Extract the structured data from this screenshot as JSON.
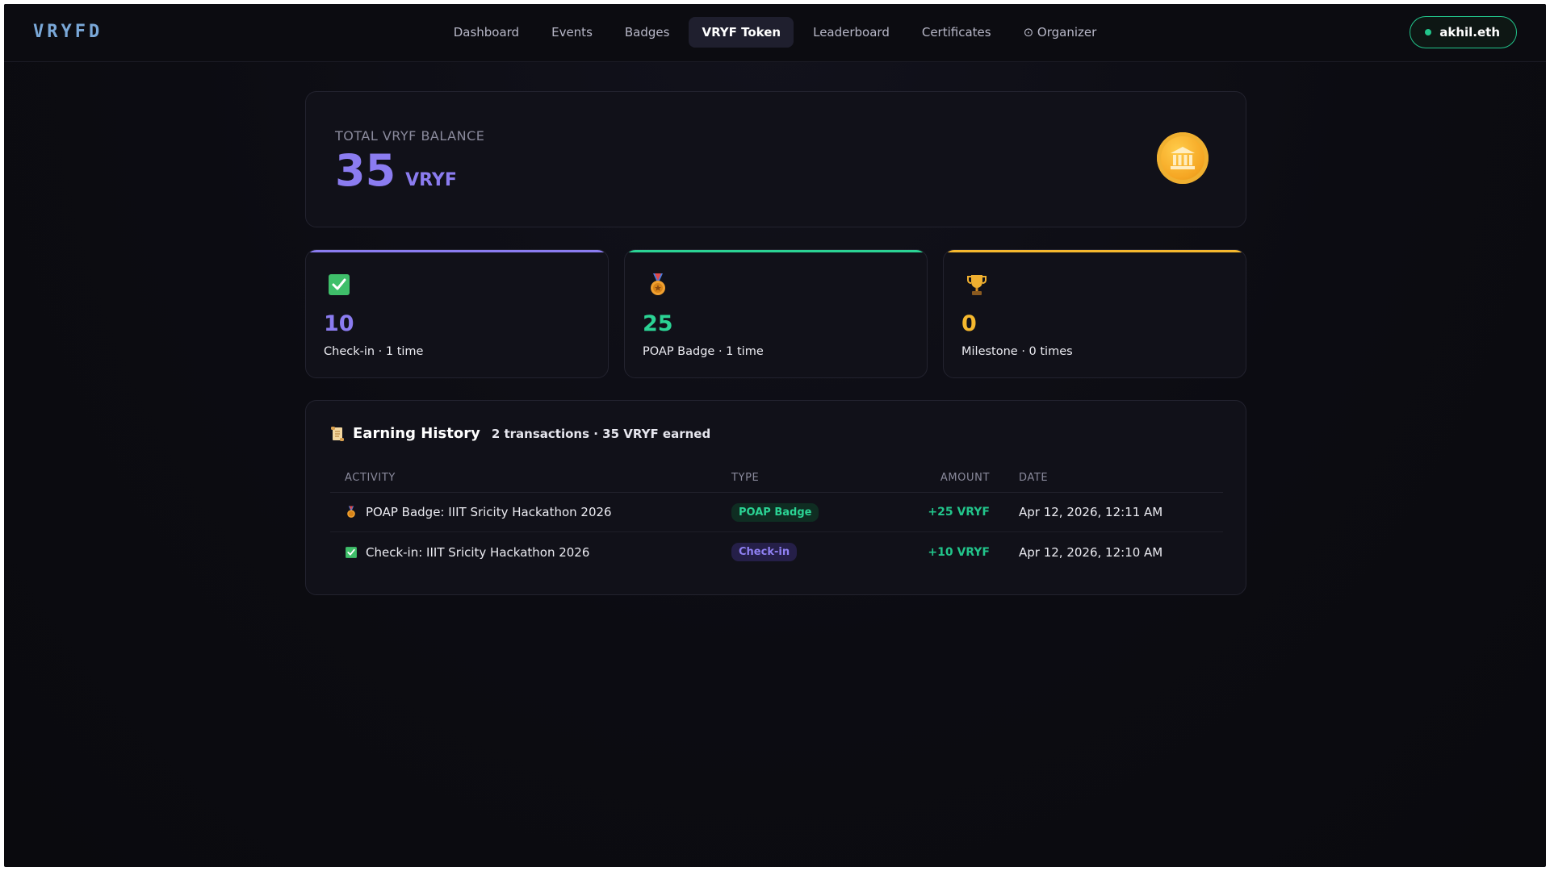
{
  "header": {
    "logo": "VRYFD",
    "nav": [
      {
        "label": "Dashboard"
      },
      {
        "label": "Events"
      },
      {
        "label": "Badges"
      },
      {
        "label": "VRYF Token",
        "active": true
      },
      {
        "label": "Leaderboard"
      },
      {
        "label": "Certificates"
      },
      {
        "label": "⊙ Organizer"
      }
    ],
    "wallet": "akhil.eth"
  },
  "balance": {
    "label": "TOTAL VRYF BALANCE",
    "value": "35",
    "unit": "VRYF",
    "icon": "bank-coin-icon"
  },
  "stats": [
    {
      "icon": "check-box-icon",
      "value": "10",
      "label": "Check-in · 1 time",
      "color": "#8b7cf0"
    },
    {
      "icon": "medal-icon",
      "value": "25",
      "label": "POAP Badge · 1 time",
      "color": "#2bd394"
    },
    {
      "icon": "trophy-icon",
      "value": "0",
      "label": "Milestone · 0 times",
      "color": "#f5b82e"
    }
  ],
  "history": {
    "title": "Earning History",
    "summary": "2 transactions · 35 VRYF earned",
    "columns": [
      "ACTIVITY",
      "TYPE",
      "AMOUNT",
      "DATE"
    ],
    "rows": [
      {
        "icon": "medal-icon",
        "activity": "POAP Badge: IIIT Sricity Hackathon 2026",
        "type": "POAP Badge",
        "amount": "+25 VRYF",
        "date": "Apr 12, 2026, 12:11 AM"
      },
      {
        "icon": "check-box-icon",
        "activity": "Check-in: IIIT Sricity Hackathon 2026",
        "type": "Check-in",
        "amount": "+10 VRYF",
        "date": "Apr 12, 2026, 12:10 AM"
      }
    ]
  }
}
